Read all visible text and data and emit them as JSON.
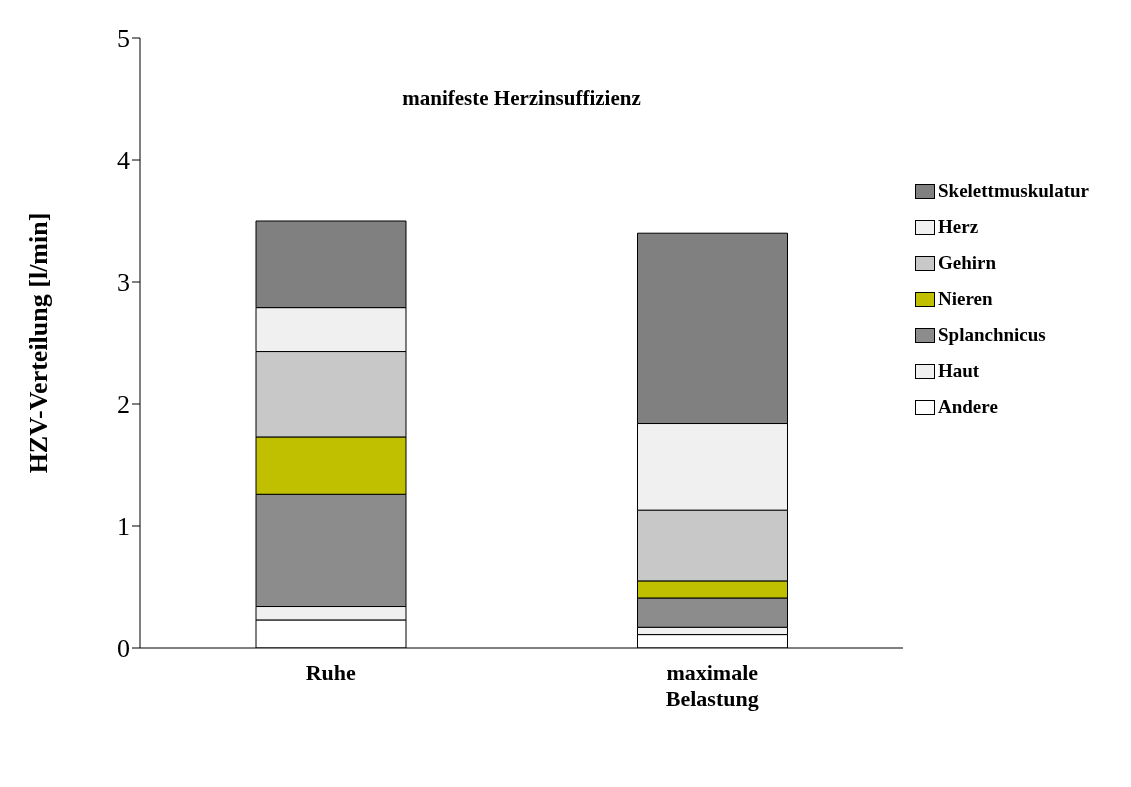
{
  "chart_data": {
    "type": "bar",
    "title": "manifeste Herzinsuffizienz",
    "ylabel": "HZV-Verteilung [l/min]",
    "categories": [
      "Ruhe",
      "maximale Belastung"
    ],
    "stacked": true,
    "ylim": [
      0,
      5
    ],
    "yticks": [
      0,
      1,
      2,
      3,
      4,
      5
    ],
    "grid": false,
    "legend": "right",
    "series": [
      {
        "name": "Andere",
        "color": "#ffffff",
        "values": [
          0.23,
          0.11
        ]
      },
      {
        "name": "Haut",
        "color": "#f0f0f0",
        "values": [
          0.11,
          0.06
        ]
      },
      {
        "name": "Splanchnicus",
        "color": "#8c8c8c",
        "values": [
          0.92,
          0.24
        ]
      },
      {
        "name": "Nieren",
        "color": "#c0c000",
        "values": [
          0.47,
          0.14
        ]
      },
      {
        "name": "Gehirn",
        "color": "#c8c8c8",
        "values": [
          0.7,
          0.58
        ]
      },
      {
        "name": "Herz",
        "color": "#f0f0f0",
        "values": [
          0.36,
          0.71
        ]
      },
      {
        "name": "Skelettmuskulatur",
        "color": "#808080",
        "values": [
          0.71,
          1.56
        ]
      }
    ]
  }
}
